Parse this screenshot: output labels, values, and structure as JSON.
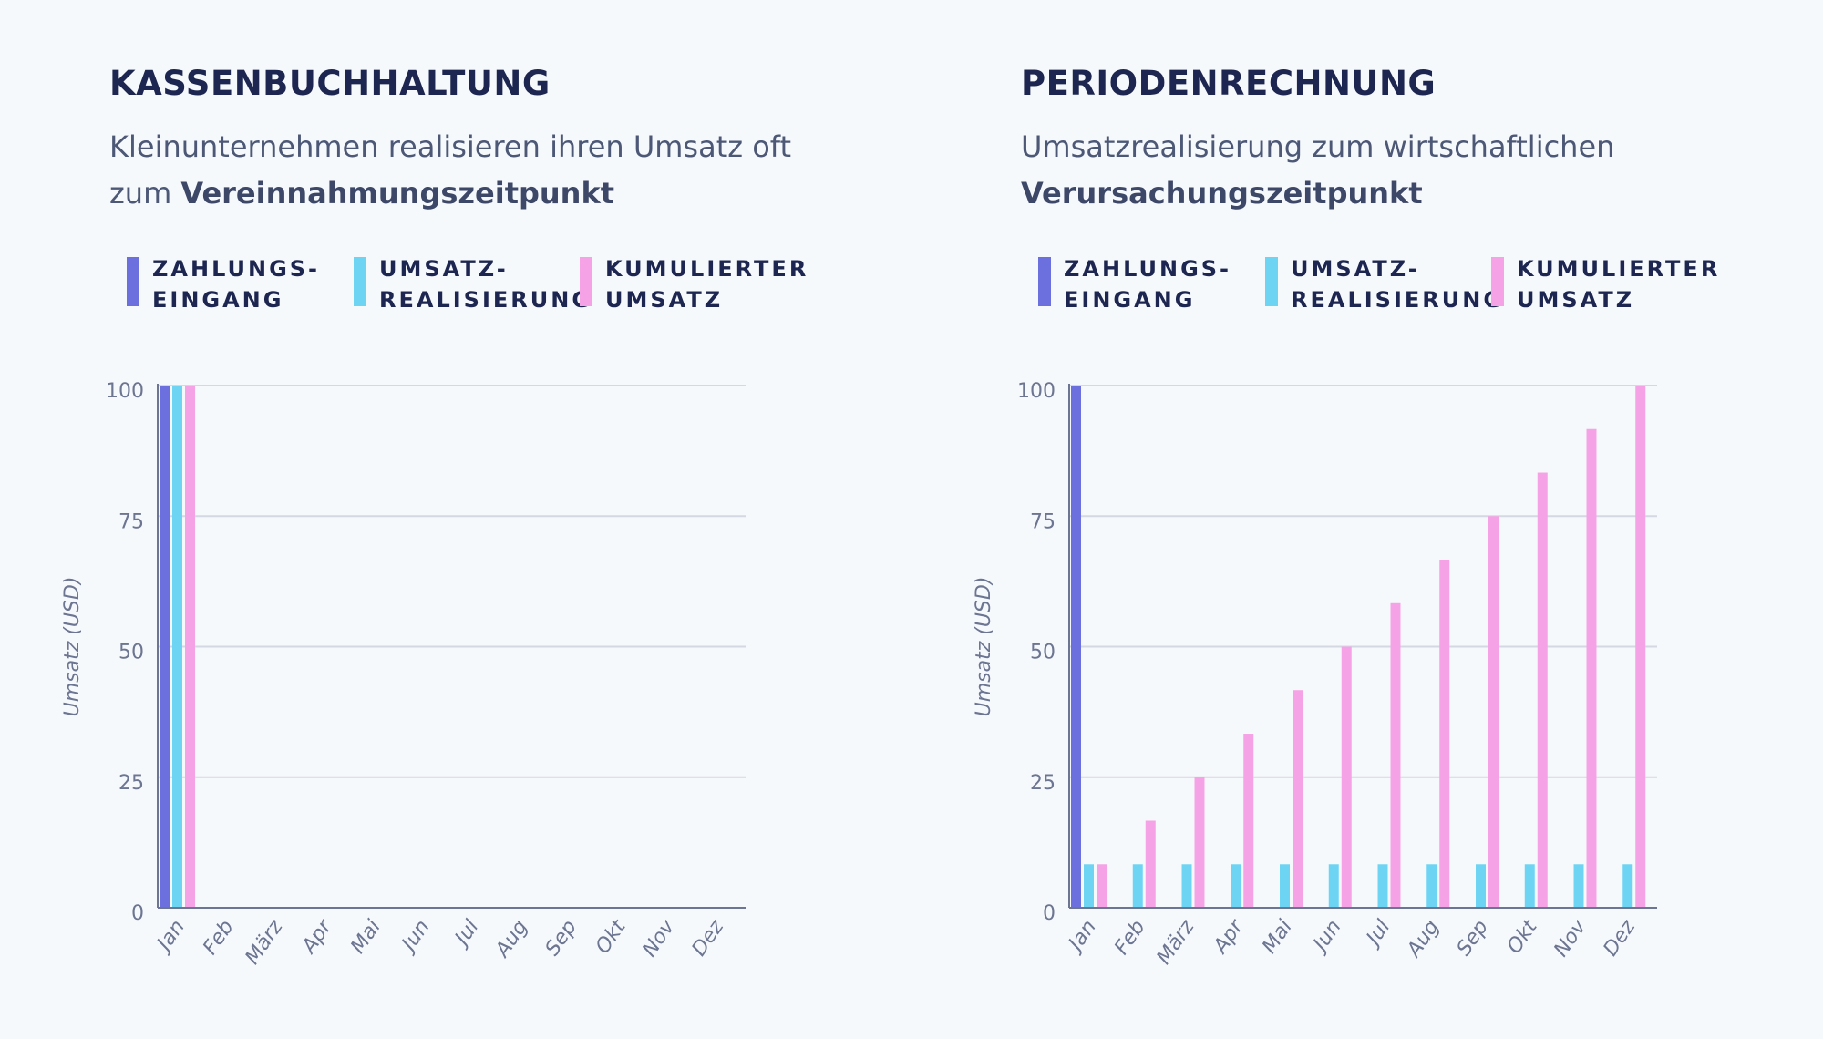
{
  "colors": {
    "zahlungseingang": "#6b70de",
    "umsatzrealisierung": "#6dd4f3",
    "kumulierter_umsatz": "#f5a3e6",
    "grid": "#d3d8e3",
    "axis": "#6c7591",
    "tick_text": "#6c7591"
  },
  "legend": [
    {
      "key": "zahlungseingang",
      "label_line1": "ZAHLUNGS-",
      "label_line2": "EINGANG"
    },
    {
      "key": "umsatzrealisierung",
      "label_line1": "UMSATZ-",
      "label_line2": "REALISIERUNG"
    },
    {
      "key": "kumulierter_umsatz",
      "label_line1": "KUMULIERTER",
      "label_line2": "UMSATZ"
    }
  ],
  "left": {
    "title": "KASSENBUCHHALTUNG",
    "subtitle_text": "Kleinunternehmen realisieren ihren Umsatz oft zum ",
    "subtitle_bold": "Vereinnahmungszeitpunkt"
  },
  "right": {
    "title": "PERIODENRECHNUNG",
    "subtitle_text": "Umsatzrealisierung zum wirtschaftlichen ",
    "subtitle_bold": "Verursachungszeitpunkt"
  },
  "chart_data": [
    {
      "type": "bar",
      "title": "KASSENBUCHHALTUNG",
      "xlabel": "",
      "ylabel": "Umsatz (USD)",
      "ylim": [
        0,
        100
      ],
      "yticks": [
        0,
        25,
        50,
        75,
        100
      ],
      "categories": [
        "Jan",
        "Feb",
        "März",
        "Apr",
        "Mai",
        "Jun",
        "Jul",
        "Aug",
        "Sep",
        "Okt",
        "Nov",
        "Dez"
      ],
      "series": [
        {
          "name": "Zahlungseingang",
          "key": "zahlungseingang",
          "values": [
            100,
            0,
            0,
            0,
            0,
            0,
            0,
            0,
            0,
            0,
            0,
            0
          ]
        },
        {
          "name": "Umsatzrealisierung",
          "key": "umsatzrealisierung",
          "values": [
            100,
            0,
            0,
            0,
            0,
            0,
            0,
            0,
            0,
            0,
            0,
            0
          ]
        },
        {
          "name": "Kumulierter Umsatz",
          "key": "kumulierter_umsatz",
          "values": [
            100,
            0,
            0,
            0,
            0,
            0,
            0,
            0,
            0,
            0,
            0,
            0
          ]
        }
      ]
    },
    {
      "type": "bar",
      "title": "PERIODENRECHNUNG",
      "xlabel": "",
      "ylabel": "Umsatz (USD)",
      "ylim": [
        0,
        100
      ],
      "yticks": [
        0,
        25,
        50,
        75,
        100
      ],
      "categories": [
        "Jan",
        "Feb",
        "März",
        "Apr",
        "Mai",
        "Jun",
        "Jul",
        "Aug",
        "Sep",
        "Okt",
        "Nov",
        "Dez"
      ],
      "series": [
        {
          "name": "Zahlungseingang",
          "key": "zahlungseingang",
          "values": [
            100,
            0,
            0,
            0,
            0,
            0,
            0,
            0,
            0,
            0,
            0,
            0
          ]
        },
        {
          "name": "Umsatzrealisierung",
          "key": "umsatzrealisierung",
          "values": [
            8.33,
            8.33,
            8.33,
            8.33,
            8.33,
            8.33,
            8.33,
            8.33,
            8.33,
            8.33,
            8.33,
            8.33
          ]
        },
        {
          "name": "Kumulierter Umsatz",
          "key": "kumulierter_umsatz",
          "values": [
            8.33,
            16.67,
            25,
            33.33,
            41.67,
            50,
            58.33,
            66.67,
            75,
            83.33,
            91.67,
            100
          ]
        }
      ]
    }
  ]
}
